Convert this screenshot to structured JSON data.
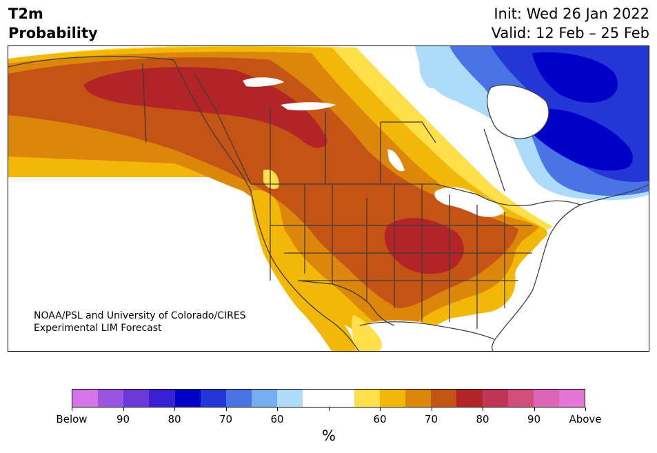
{
  "title": {
    "line1": "T2m",
    "line2": "Probability",
    "init": "Init: Wed 26 Jan 2022",
    "valid": "Valid: 12 Feb – 25 Feb"
  },
  "credit": {
    "line1": "NOAA/PSL and University of Colorado/CIRES",
    "line2": "Experimental LIM Forecast"
  },
  "colorbar": {
    "colors": [
      "#d674e8",
      "#9a55e0",
      "#6a38d8",
      "#3a1fd4",
      "#0000c8",
      "#2237d6",
      "#4a74e4",
      "#74aef0",
      "#acdcfa",
      "#ffffff",
      "#ffffff",
      "#ffe04a",
      "#f2b707",
      "#dc860c",
      "#c45316",
      "#b22425",
      "#c23556",
      "#d04f7a",
      "#dc64b4",
      "#e476d8"
    ],
    "labels": [
      "Below",
      "90",
      "80",
      "70",
      "60",
      "60",
      "70",
      "80",
      "90",
      "Above"
    ],
    "unit": "%"
  },
  "map": {
    "region": "North America",
    "colors": {
      "water": "#ffffff",
      "border": "#3c3c3c"
    }
  }
}
